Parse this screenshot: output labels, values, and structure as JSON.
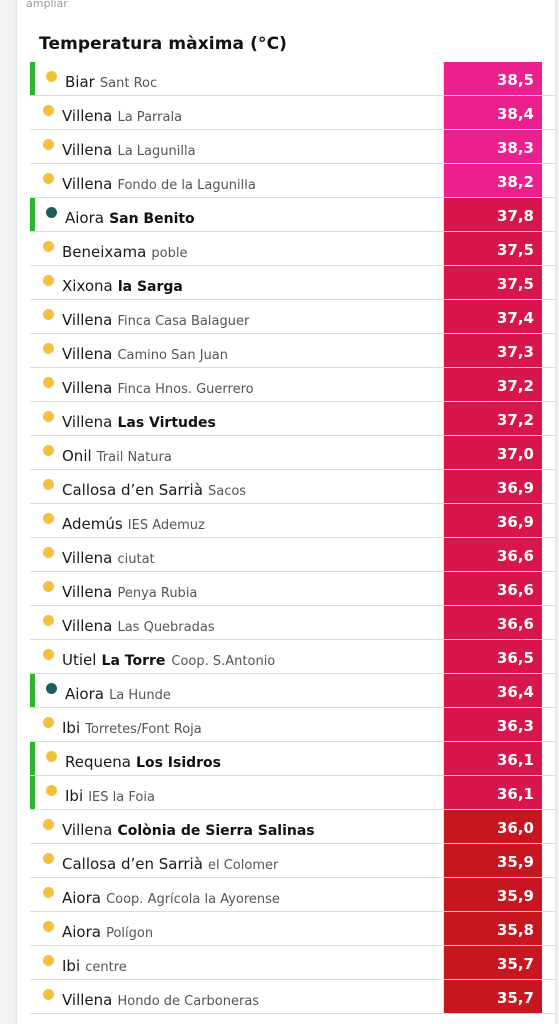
{
  "header": {
    "top_link": "ampliar",
    "title": "Temperatura màxima (°C)"
  },
  "colors": {
    "marker_green": "#2db52d",
    "dot_yellow": "#f3c13a",
    "dot_teal": "#1d5e5a",
    "pink": "#ec1f8f",
    "crimson": "#d8154c",
    "red": "#c81620"
  },
  "rows": [
    {
      "place": "Biar",
      "station": "Sant Roc",
      "bold": false,
      "value": "38,5",
      "marker": true,
      "dot": "yellow",
      "color": "pink"
    },
    {
      "place": "Villena",
      "station": "La Parrala",
      "bold": false,
      "value": "38,4",
      "marker": false,
      "dot": "yellow",
      "color": "pink"
    },
    {
      "place": "Villena",
      "station": "La Lagunilla",
      "bold": false,
      "value": "38,3",
      "marker": false,
      "dot": "yellow",
      "color": "pink"
    },
    {
      "place": "Villena",
      "station": "Fondo de la Lagunilla",
      "bold": false,
      "value": "38,2",
      "marker": false,
      "dot": "yellow",
      "color": "pink"
    },
    {
      "place": "Aiora",
      "station": "San Benito",
      "bold": true,
      "value": "37,8",
      "marker": true,
      "dot": "teal",
      "color": "crimson"
    },
    {
      "place": "Beneixama",
      "station": "poble",
      "bold": false,
      "value": "37,5",
      "marker": false,
      "dot": "yellow",
      "color": "crimson"
    },
    {
      "place": "Xixona",
      "station": "la Sarga",
      "bold": true,
      "value": "37,5",
      "marker": false,
      "dot": "yellow",
      "color": "crimson"
    },
    {
      "place": "Villena",
      "station": "Finca Casa Balaguer",
      "bold": false,
      "value": "37,4",
      "marker": false,
      "dot": "yellow",
      "color": "crimson"
    },
    {
      "place": "Villena",
      "station": "Camino San Juan",
      "bold": false,
      "value": "37,3",
      "marker": false,
      "dot": "yellow",
      "color": "crimson"
    },
    {
      "place": "Villena",
      "station": "Finca Hnos. Guerrero",
      "bold": false,
      "value": "37,2",
      "marker": false,
      "dot": "yellow",
      "color": "crimson"
    },
    {
      "place": "Villena",
      "station": "Las Virtudes",
      "bold": true,
      "value": "37,2",
      "marker": false,
      "dot": "yellow",
      "color": "crimson"
    },
    {
      "place": "Onil",
      "station": "Trail Natura",
      "bold": false,
      "value": "37,0",
      "marker": false,
      "dot": "yellow",
      "color": "crimson"
    },
    {
      "place": "Callosa d’en Sarrià",
      "station": "Sacos",
      "bold": false,
      "value": "36,9",
      "marker": false,
      "dot": "yellow",
      "color": "crimson"
    },
    {
      "place": "Ademús",
      "station": "IES Ademuz",
      "bold": false,
      "value": "36,9",
      "marker": false,
      "dot": "yellow",
      "color": "crimson"
    },
    {
      "place": "Villena",
      "station": "ciutat",
      "bold": false,
      "value": "36,6",
      "marker": false,
      "dot": "yellow",
      "color": "crimson"
    },
    {
      "place": "Villena",
      "station": "Penya Rubia",
      "bold": false,
      "value": "36,6",
      "marker": false,
      "dot": "yellow",
      "color": "crimson"
    },
    {
      "place": "Villena",
      "station": "Las Quebradas",
      "bold": false,
      "value": "36,6",
      "marker": false,
      "dot": "yellow",
      "color": "crimson"
    },
    {
      "place": "Utiel",
      "station": "La Torre",
      "bold": true,
      "extra": "Coop. S.Antonio",
      "value": "36,5",
      "marker": false,
      "dot": "yellow",
      "color": "crimson"
    },
    {
      "place": "Aiora",
      "station": "La Hunde",
      "bold": false,
      "value": "36,4",
      "marker": true,
      "dot": "teal",
      "color": "crimson"
    },
    {
      "place": "Ibi",
      "station": "Torretes/Font Roja",
      "bold": false,
      "value": "36,3",
      "marker": false,
      "dot": "yellow",
      "color": "crimson"
    },
    {
      "place": "Requena",
      "station": "Los Isidros",
      "bold": true,
      "value": "36,1",
      "marker": true,
      "dot": "yellow",
      "color": "crimson"
    },
    {
      "place": "Ibi",
      "station": "IES la Foia",
      "bold": false,
      "value": "36,1",
      "marker": true,
      "dot": "yellow",
      "color": "crimson"
    },
    {
      "place": "Villena",
      "station": "Colònia de Sierra Salinas",
      "bold": true,
      "value": "36,0",
      "marker": false,
      "dot": "yellow",
      "color": "red"
    },
    {
      "place": "Callosa d’en Sarrià",
      "station": "el Colomer",
      "bold": false,
      "value": "35,9",
      "marker": false,
      "dot": "yellow",
      "color": "red"
    },
    {
      "place": "Aiora",
      "station": "Coop. Agrícola la Ayorense",
      "bold": false,
      "value": "35,9",
      "marker": false,
      "dot": "yellow",
      "color": "red"
    },
    {
      "place": "Aiora",
      "station": "Polígon",
      "bold": false,
      "value": "35,8",
      "marker": false,
      "dot": "yellow",
      "color": "red"
    },
    {
      "place": "Ibi",
      "station": "centre",
      "bold": false,
      "value": "35,7",
      "marker": false,
      "dot": "yellow",
      "color": "red"
    },
    {
      "place": "Villena",
      "station": "Hondo de Carboneras",
      "bold": false,
      "value": "35,7",
      "marker": false,
      "dot": "yellow",
      "color": "red"
    }
  ]
}
